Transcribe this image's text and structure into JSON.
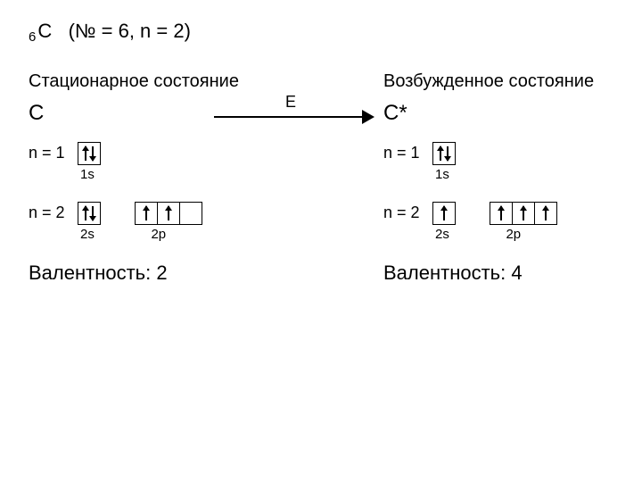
{
  "header": {
    "subscript": "6",
    "element": "C",
    "params": "(№ = 6, n = 2)"
  },
  "transition": {
    "label": "E"
  },
  "left": {
    "title": "Стационарное состояние",
    "symbol": "C",
    "n1": {
      "label": "n = 1",
      "orb_label": "1s",
      "boxes": [
        [
          "up",
          "down"
        ]
      ]
    },
    "n2": {
      "label": "n = 2",
      "s_label": "2s",
      "p_label": "2р",
      "s_boxes": [
        [
          "up",
          "down"
        ]
      ],
      "p_boxes": [
        [
          "up"
        ],
        [
          "up"
        ],
        []
      ]
    },
    "valency": "Валентность: 2"
  },
  "right": {
    "title": "Возбужденное состояние",
    "symbol": "C*",
    "n1": {
      "label": "n = 1",
      "orb_label": "1s",
      "boxes": [
        [
          "up",
          "down"
        ]
      ]
    },
    "n2": {
      "label": "n = 2",
      "s_label": "2s",
      "p_label": "2р",
      "s_boxes": [
        [
          "up"
        ]
      ],
      "p_boxes": [
        [
          "up"
        ],
        [
          "up"
        ],
        [
          "up"
        ]
      ]
    },
    "valency": "Валентность:  4"
  },
  "colors": {
    "bg": "#ffffff",
    "fg": "#000000"
  }
}
